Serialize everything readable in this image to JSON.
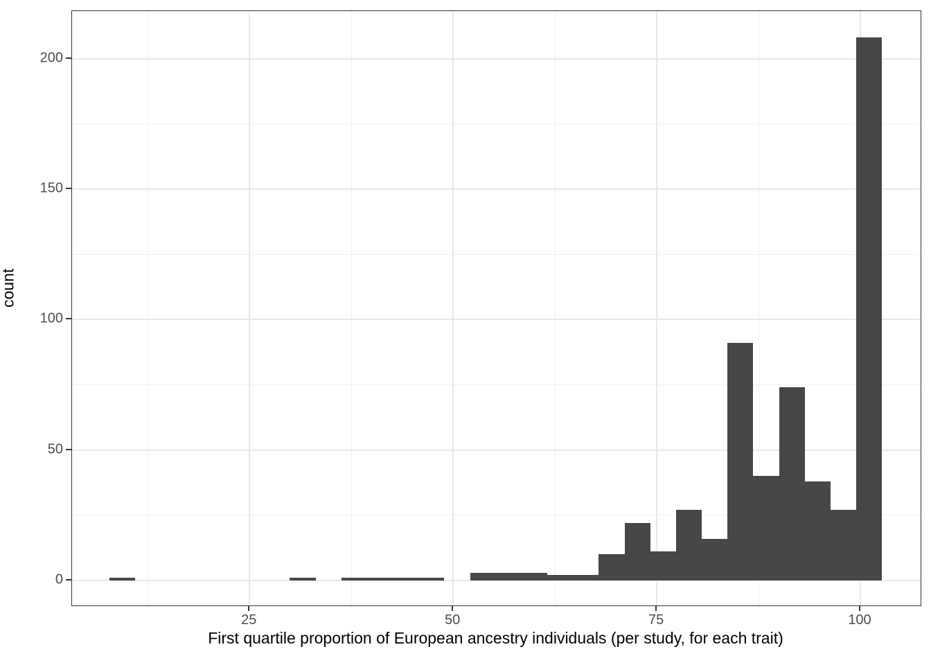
{
  "chart_data": {
    "type": "bar",
    "subtype": "histogram",
    "title": "",
    "xlabel": "First quartile proportion of European ancestry individuals (per study, for each trait)",
    "ylabel": "count",
    "xlim": [
      3.2,
      107.4
    ],
    "ylim": [
      -9.6,
      218.2
    ],
    "x_major_ticks": [
      25,
      50,
      75,
      100
    ],
    "x_minor_gridlines": [
      12.5,
      37.5,
      62.5,
      87.5
    ],
    "y_major_ticks": [
      0,
      50,
      100,
      150,
      200
    ],
    "y_minor_gridlines": [
      25,
      75,
      125,
      175
    ],
    "grid": true,
    "legend": "none",
    "bin_width": 3.1613,
    "bins": [
      {
        "x0": 7.82,
        "x1": 10.98,
        "count": 1
      },
      {
        "x0": 10.98,
        "x1": 14.14,
        "count": 0
      },
      {
        "x0": 14.14,
        "x1": 17.3,
        "count": 0
      },
      {
        "x0": 17.3,
        "x1": 20.47,
        "count": 0
      },
      {
        "x0": 20.47,
        "x1": 23.63,
        "count": 0
      },
      {
        "x0": 23.63,
        "x1": 26.79,
        "count": 0
      },
      {
        "x0": 26.79,
        "x1": 29.95,
        "count": 0
      },
      {
        "x0": 29.95,
        "x1": 33.11,
        "count": 1
      },
      {
        "x0": 33.11,
        "x1": 36.27,
        "count": 0
      },
      {
        "x0": 36.27,
        "x1": 39.43,
        "count": 1
      },
      {
        "x0": 39.43,
        "x1": 42.59,
        "count": 1
      },
      {
        "x0": 42.59,
        "x1": 45.76,
        "count": 1
      },
      {
        "x0": 45.76,
        "x1": 48.92,
        "count": 1
      },
      {
        "x0": 48.92,
        "x1": 52.08,
        "count": 0
      },
      {
        "x0": 52.08,
        "x1": 55.24,
        "count": 3
      },
      {
        "x0": 55.24,
        "x1": 58.4,
        "count": 3
      },
      {
        "x0": 58.4,
        "x1": 61.56,
        "count": 3
      },
      {
        "x0": 61.56,
        "x1": 64.72,
        "count": 2
      },
      {
        "x0": 64.72,
        "x1": 67.88,
        "count": 2
      },
      {
        "x0": 67.88,
        "x1": 71.04,
        "count": 10
      },
      {
        "x0": 71.04,
        "x1": 74.2,
        "count": 22
      },
      {
        "x0": 74.2,
        "x1": 77.37,
        "count": 11
      },
      {
        "x0": 77.37,
        "x1": 80.53,
        "count": 27
      },
      {
        "x0": 80.53,
        "x1": 83.69,
        "count": 16
      },
      {
        "x0": 83.69,
        "x1": 86.85,
        "count": 91
      },
      {
        "x0": 86.85,
        "x1": 90.01,
        "count": 40
      },
      {
        "x0": 90.01,
        "x1": 93.17,
        "count": 74
      },
      {
        "x0": 93.17,
        "x1": 96.33,
        "count": 38
      },
      {
        "x0": 96.33,
        "x1": 99.49,
        "count": 27
      },
      {
        "x0": 99.49,
        "x1": 102.65,
        "count": 208
      }
    ],
    "colors": {
      "bar_fill": "#474747",
      "grid_major": "#e8e8e8",
      "grid_minor": "#f1f1f1",
      "panel_border": "#333333",
      "tick_label": "#4d4d4d",
      "axis_title": "#000000",
      "background": "#ffffff"
    }
  }
}
